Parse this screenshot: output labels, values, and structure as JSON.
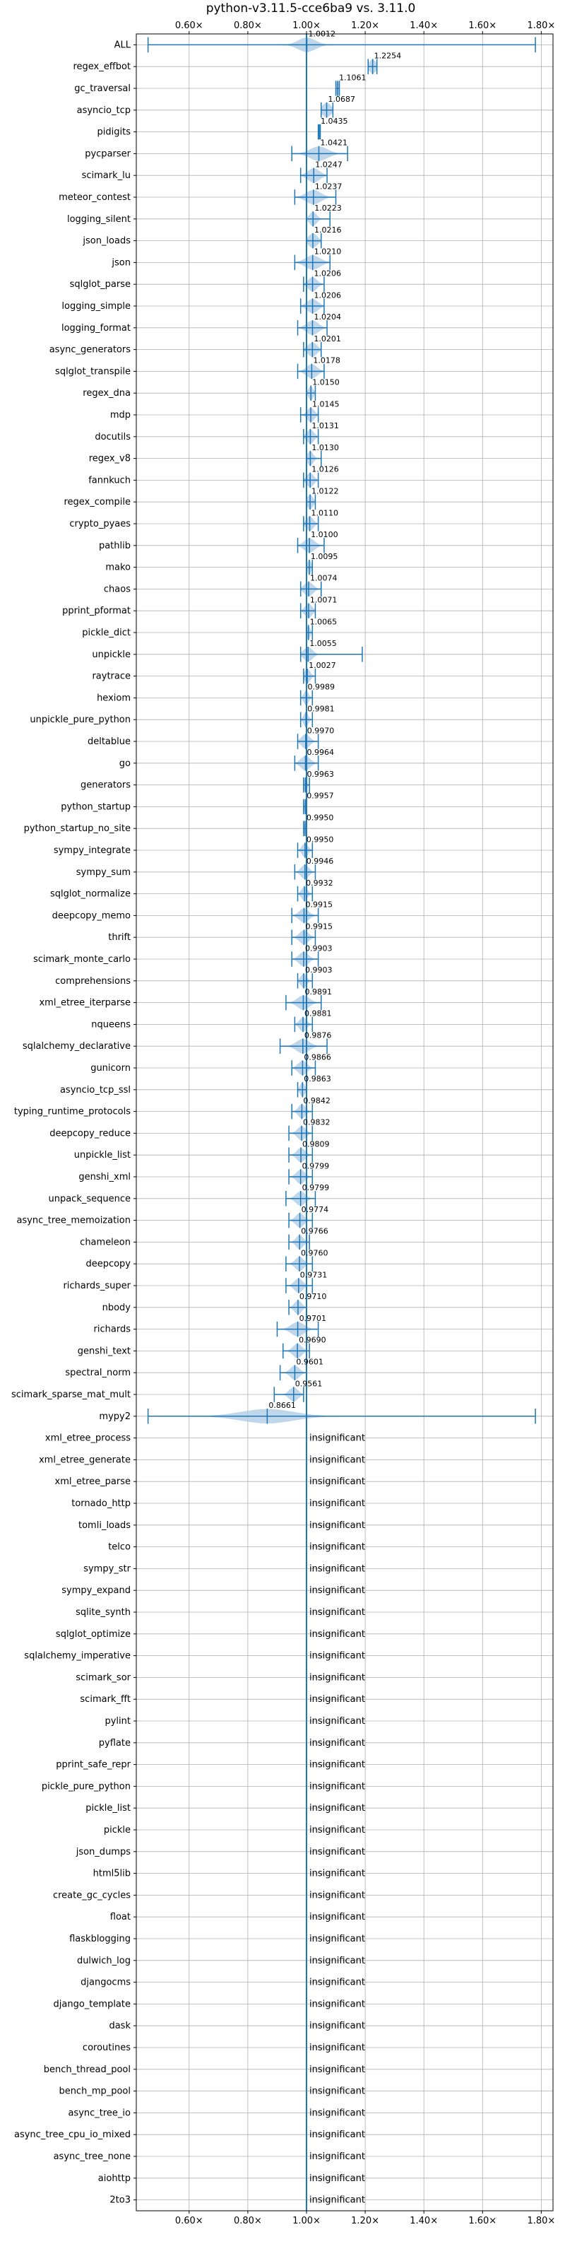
{
  "chart_data": {
    "type": "violin",
    "title": "python-v3.11.5-cce6ba9 vs. 3.11.0",
    "xlabel": "",
    "ylabel": "",
    "x_axis_position": "top-and-bottom",
    "xlim": [
      0.42,
      1.84
    ],
    "x_ticks": [
      0.6,
      0.8,
      1.0,
      1.2,
      1.4,
      1.6,
      1.8
    ],
    "x_tick_labels": [
      "0.60×",
      "0.80×",
      "1.00×",
      "1.20×",
      "1.40×",
      "1.60×",
      "1.80×"
    ],
    "grid": true,
    "reference_line": 1.0,
    "colors": {
      "accent": "#1f77b4",
      "violin_fill": "#aac8e4",
      "grid": "#b0b0b0",
      "frame": "#000000"
    },
    "insignificant_label": "insignificant",
    "benchmarks": [
      {
        "name": "ALL",
        "label": "1.0012",
        "mean": 1.0012,
        "min": 0.46,
        "max": 1.78,
        "spread": 0.03
      },
      {
        "name": "regex_effbot",
        "label": "1.2254",
        "mean": 1.2254,
        "min": 1.21,
        "max": 1.24,
        "spread": 0.012
      },
      {
        "name": "gc_traversal",
        "label": "1.1061",
        "mean": 1.1061,
        "min": 1.1,
        "max": 1.112,
        "spread": 0.006
      },
      {
        "name": "asyncio_tcp",
        "label": "1.0687",
        "mean": 1.0687,
        "min": 1.05,
        "max": 1.09,
        "spread": 0.015
      },
      {
        "name": "pidigits",
        "label": "1.0435",
        "mean": 1.0435,
        "min": 1.04,
        "max": 1.047,
        "spread": 0.004
      },
      {
        "name": "pycparser",
        "label": "1.0421",
        "mean": 1.0421,
        "min": 0.95,
        "max": 1.14,
        "spread": 0.03
      },
      {
        "name": "scimark_lu",
        "label": "1.0247",
        "mean": 1.0247,
        "min": 0.98,
        "max": 1.07,
        "spread": 0.02
      },
      {
        "name": "meteor_contest",
        "label": "1.0237",
        "mean": 1.0237,
        "min": 0.96,
        "max": 1.1,
        "spread": 0.025
      },
      {
        "name": "logging_silent",
        "label": "1.0223",
        "mean": 1.0223,
        "min": 1.0,
        "max": 1.08,
        "spread": 0.012
      },
      {
        "name": "json_loads",
        "label": "1.0216",
        "mean": 1.0216,
        "min": 1.0,
        "max": 1.05,
        "spread": 0.015
      },
      {
        "name": "json",
        "label": "1.0210",
        "mean": 1.021,
        "min": 0.96,
        "max": 1.08,
        "spread": 0.025
      },
      {
        "name": "sqlglot_parse",
        "label": "1.0206",
        "mean": 1.0206,
        "min": 0.99,
        "max": 1.06,
        "spread": 0.015
      },
      {
        "name": "logging_simple",
        "label": "1.0206",
        "mean": 1.0206,
        "min": 0.98,
        "max": 1.06,
        "spread": 0.018
      },
      {
        "name": "logging_format",
        "label": "1.0204",
        "mean": 1.0204,
        "min": 0.97,
        "max": 1.07,
        "spread": 0.02
      },
      {
        "name": "async_generators",
        "label": "1.0201",
        "mean": 1.0201,
        "min": 0.99,
        "max": 1.05,
        "spread": 0.015
      },
      {
        "name": "sqlglot_transpile",
        "label": "1.0178",
        "mean": 1.0178,
        "min": 0.97,
        "max": 1.06,
        "spread": 0.018
      },
      {
        "name": "regex_dna",
        "label": "1.0150",
        "mean": 1.015,
        "min": 1.0,
        "max": 1.03,
        "spread": 0.008
      },
      {
        "name": "mdp",
        "label": "1.0145",
        "mean": 1.0145,
        "min": 0.98,
        "max": 1.04,
        "spread": 0.012
      },
      {
        "name": "docutils",
        "label": "1.0131",
        "mean": 1.0131,
        "min": 0.99,
        "max": 1.04,
        "spread": 0.012
      },
      {
        "name": "regex_v8",
        "label": "1.0130",
        "mean": 1.013,
        "min": 1.0,
        "max": 1.05,
        "spread": 0.01
      },
      {
        "name": "fannkuch",
        "label": "1.0126",
        "mean": 1.0126,
        "min": 0.99,
        "max": 1.04,
        "spread": 0.012
      },
      {
        "name": "regex_compile",
        "label": "1.0122",
        "mean": 1.0122,
        "min": 1.0,
        "max": 1.03,
        "spread": 0.01
      },
      {
        "name": "crypto_pyaes",
        "label": "1.0110",
        "mean": 1.011,
        "min": 0.99,
        "max": 1.04,
        "spread": 0.012
      },
      {
        "name": "pathlib",
        "label": "1.0100",
        "mean": 1.01,
        "min": 0.97,
        "max": 1.06,
        "spread": 0.018
      },
      {
        "name": "mako",
        "label": "1.0095",
        "mean": 1.0095,
        "min": 1.0,
        "max": 1.02,
        "spread": 0.007
      },
      {
        "name": "chaos",
        "label": "1.0074",
        "mean": 1.0074,
        "min": 0.98,
        "max": 1.05,
        "spread": 0.015
      },
      {
        "name": "pprint_pformat",
        "label": "1.0071",
        "mean": 1.0071,
        "min": 0.98,
        "max": 1.03,
        "spread": 0.012
      },
      {
        "name": "pickle_dict",
        "label": "1.0065",
        "mean": 1.0065,
        "min": 1.0,
        "max": 1.02,
        "spread": 0.006
      },
      {
        "name": "unpickle",
        "label": "1.0055",
        "mean": 1.0055,
        "min": 0.98,
        "max": 1.19,
        "spread": 0.015
      },
      {
        "name": "raytrace",
        "label": "1.0027",
        "mean": 1.0027,
        "min": 0.99,
        "max": 1.03,
        "spread": 0.01
      },
      {
        "name": "hexiom",
        "label": "0.9989",
        "mean": 0.9989,
        "min": 0.98,
        "max": 1.02,
        "spread": 0.008
      },
      {
        "name": "unpickle_pure_python",
        "label": "0.9981",
        "mean": 0.9981,
        "min": 0.98,
        "max": 1.02,
        "spread": 0.008
      },
      {
        "name": "deltablue",
        "label": "0.9970",
        "mean": 0.997,
        "min": 0.97,
        "max": 1.04,
        "spread": 0.014
      },
      {
        "name": "go",
        "label": "0.9964",
        "mean": 0.9964,
        "min": 0.96,
        "max": 1.04,
        "spread": 0.016
      },
      {
        "name": "generators",
        "label": "0.9963",
        "mean": 0.9963,
        "min": 0.99,
        "max": 1.01,
        "spread": 0.005
      },
      {
        "name": "python_startup",
        "label": "0.9957",
        "mean": 0.9957,
        "min": 0.99,
        "max": 1.0,
        "spread": 0.003
      },
      {
        "name": "python_startup_no_site",
        "label": "0.9950",
        "mean": 0.995,
        "min": 0.99,
        "max": 1.0,
        "spread": 0.003
      },
      {
        "name": "sympy_integrate",
        "label": "0.9950",
        "mean": 0.995,
        "min": 0.97,
        "max": 1.02,
        "spread": 0.01
      },
      {
        "name": "sympy_sum",
        "label": "0.9946",
        "mean": 0.9946,
        "min": 0.96,
        "max": 1.03,
        "spread": 0.013
      },
      {
        "name": "sqlglot_normalize",
        "label": "0.9932",
        "mean": 0.9932,
        "min": 0.97,
        "max": 1.02,
        "spread": 0.01
      },
      {
        "name": "deepcopy_memo",
        "label": "0.9915",
        "mean": 0.9915,
        "min": 0.95,
        "max": 1.04,
        "spread": 0.016
      },
      {
        "name": "thrift",
        "label": "0.9915",
        "mean": 0.9915,
        "min": 0.95,
        "max": 1.03,
        "spread": 0.015
      },
      {
        "name": "scimark_monte_carlo",
        "label": "0.9903",
        "mean": 0.9903,
        "min": 0.95,
        "max": 1.04,
        "spread": 0.016
      },
      {
        "name": "comprehensions",
        "label": "0.9903",
        "mean": 0.9903,
        "min": 0.97,
        "max": 1.02,
        "spread": 0.01
      },
      {
        "name": "xml_etree_iterparse",
        "label": "0.9891",
        "mean": 0.9891,
        "min": 0.93,
        "max": 1.05,
        "spread": 0.02
      },
      {
        "name": "nqueens",
        "label": "0.9881",
        "mean": 0.9881,
        "min": 0.96,
        "max": 1.02,
        "spread": 0.012
      },
      {
        "name": "sqlalchemy_declarative",
        "label": "0.9876",
        "mean": 0.9876,
        "min": 0.91,
        "max": 1.07,
        "spread": 0.022
      },
      {
        "name": "gunicorn",
        "label": "0.9866",
        "mean": 0.9866,
        "min": 0.95,
        "max": 1.03,
        "spread": 0.015
      },
      {
        "name": "asyncio_tcp_ssl",
        "label": "0.9863",
        "mean": 0.9863,
        "min": 0.97,
        "max": 1.0,
        "spread": 0.008
      },
      {
        "name": "typing_runtime_protocols",
        "label": "0.9842",
        "mean": 0.9842,
        "min": 0.95,
        "max": 1.02,
        "spread": 0.012
      },
      {
        "name": "deepcopy_reduce",
        "label": "0.9832",
        "mean": 0.9832,
        "min": 0.94,
        "max": 1.02,
        "spread": 0.014
      },
      {
        "name": "unpickle_list",
        "label": "0.9809",
        "mean": 0.9809,
        "min": 0.94,
        "max": 1.02,
        "spread": 0.014
      },
      {
        "name": "genshi_xml",
        "label": "0.9799",
        "mean": 0.9799,
        "min": 0.94,
        "max": 1.02,
        "spread": 0.014
      },
      {
        "name": "unpack_sequence",
        "label": "0.9799",
        "mean": 0.9799,
        "min": 0.93,
        "max": 1.03,
        "spread": 0.016
      },
      {
        "name": "async_tree_memoization",
        "label": "0.9774",
        "mean": 0.9774,
        "min": 0.94,
        "max": 1.02,
        "spread": 0.014
      },
      {
        "name": "chameleon",
        "label": "0.9766",
        "mean": 0.9766,
        "min": 0.94,
        "max": 1.01,
        "spread": 0.012
      },
      {
        "name": "deepcopy",
        "label": "0.9760",
        "mean": 0.976,
        "min": 0.93,
        "max": 1.02,
        "spread": 0.014
      },
      {
        "name": "richards_super",
        "label": "0.9731",
        "mean": 0.9731,
        "min": 0.93,
        "max": 1.02,
        "spread": 0.014
      },
      {
        "name": "nbody",
        "label": "0.9710",
        "mean": 0.971,
        "min": 0.94,
        "max": 1.0,
        "spread": 0.012
      },
      {
        "name": "richards",
        "label": "0.9701",
        "mean": 0.9701,
        "min": 0.9,
        "max": 1.04,
        "spread": 0.022
      },
      {
        "name": "genshi_text",
        "label": "0.9690",
        "mean": 0.969,
        "min": 0.92,
        "max": 1.01,
        "spread": 0.015
      },
      {
        "name": "spectral_norm",
        "label": "0.9601",
        "mean": 0.9601,
        "min": 0.91,
        "max": 1.0,
        "spread": 0.015
      },
      {
        "name": "scimark_sparse_mat_mult",
        "label": "0.9561",
        "mean": 0.9561,
        "min": 0.89,
        "max": 0.99,
        "spread": 0.015
      },
      {
        "name": "mypy2",
        "label": "0.8661",
        "mean": 0.8661,
        "min": 0.46,
        "max": 1.78,
        "spread": 0.09
      },
      {
        "name": "xml_etree_process",
        "insignificant": true
      },
      {
        "name": "xml_etree_generate",
        "insignificant": true
      },
      {
        "name": "xml_etree_parse",
        "insignificant": true
      },
      {
        "name": "tornado_http",
        "insignificant": true
      },
      {
        "name": "tomli_loads",
        "insignificant": true
      },
      {
        "name": "telco",
        "insignificant": true
      },
      {
        "name": "sympy_str",
        "insignificant": true
      },
      {
        "name": "sympy_expand",
        "insignificant": true
      },
      {
        "name": "sqlite_synth",
        "insignificant": true
      },
      {
        "name": "sqlglot_optimize",
        "insignificant": true
      },
      {
        "name": "sqlalchemy_imperative",
        "insignificant": true
      },
      {
        "name": "scimark_sor",
        "insignificant": true
      },
      {
        "name": "scimark_fft",
        "insignificant": true
      },
      {
        "name": "pylint",
        "insignificant": true
      },
      {
        "name": "pyflate",
        "insignificant": true
      },
      {
        "name": "pprint_safe_repr",
        "insignificant": true
      },
      {
        "name": "pickle_pure_python",
        "insignificant": true
      },
      {
        "name": "pickle_list",
        "insignificant": true
      },
      {
        "name": "pickle",
        "insignificant": true
      },
      {
        "name": "json_dumps",
        "insignificant": true
      },
      {
        "name": "html5lib",
        "insignificant": true
      },
      {
        "name": "create_gc_cycles",
        "insignificant": true
      },
      {
        "name": "float",
        "insignificant": true
      },
      {
        "name": "flaskblogging",
        "insignificant": true
      },
      {
        "name": "dulwich_log",
        "insignificant": true
      },
      {
        "name": "djangocms",
        "insignificant": true
      },
      {
        "name": "django_template",
        "insignificant": true
      },
      {
        "name": "dask",
        "insignificant": true
      },
      {
        "name": "coroutines",
        "insignificant": true
      },
      {
        "name": "bench_thread_pool",
        "insignificant": true
      },
      {
        "name": "bench_mp_pool",
        "insignificant": true
      },
      {
        "name": "async_tree_io",
        "insignificant": true
      },
      {
        "name": "async_tree_cpu_io_mixed",
        "insignificant": true
      },
      {
        "name": "async_tree_none",
        "insignificant": true
      },
      {
        "name": "aiohttp",
        "insignificant": true
      },
      {
        "name": "2to3",
        "insignificant": true
      }
    ]
  }
}
